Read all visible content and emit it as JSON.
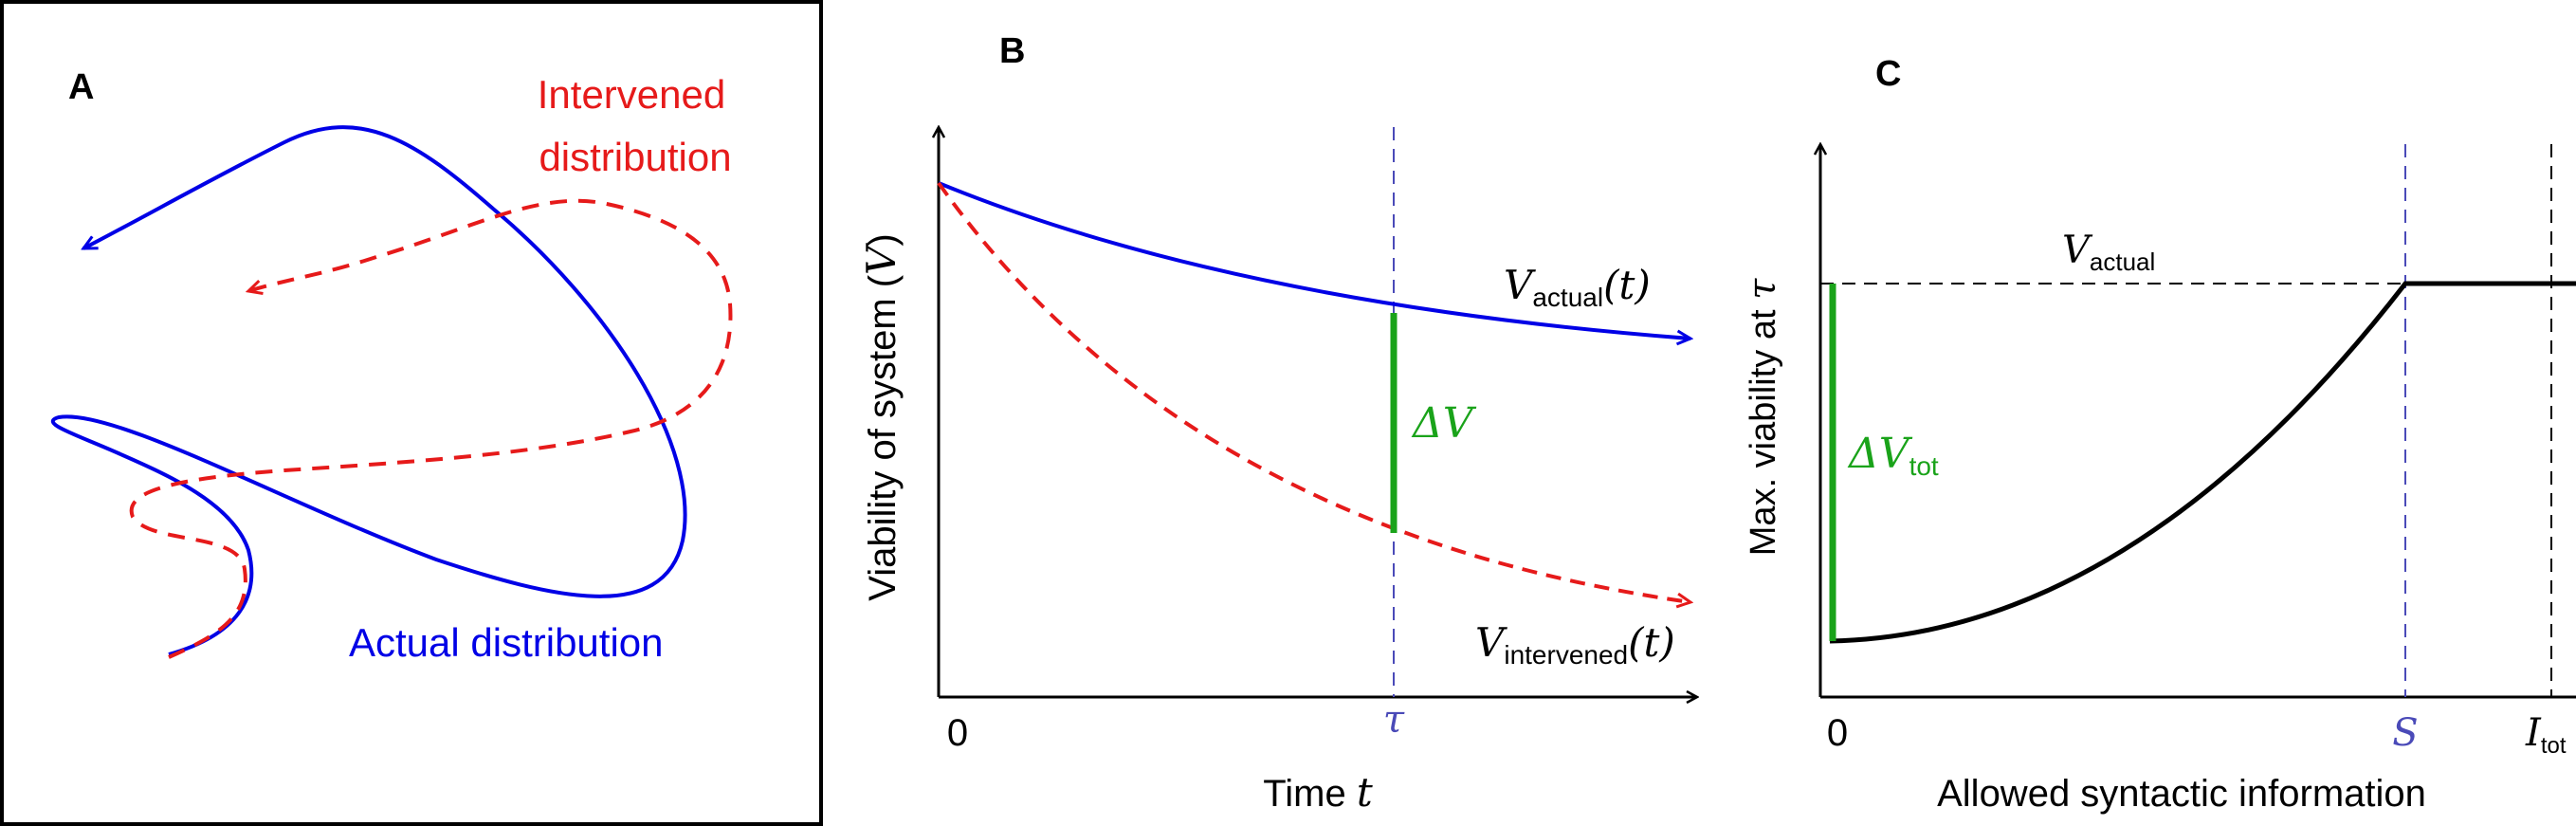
{
  "colors": {
    "actual": "#0000e6",
    "intervened": "#e61a1a",
    "green": "#1aa31a",
    "guide": "#4a4ab8",
    "black": "#000000"
  },
  "panel_a": {
    "letter": "A",
    "intervened_label_line1": "Intervened",
    "intervened_label_line2": "distribution",
    "actual_label": "Actual distribution"
  },
  "panel_b": {
    "letter": "B",
    "ylabel_text": "Viability of system (",
    "ylabel_var": "V",
    "ylabel_close": ")",
    "xlabel_text": "Time ",
    "xlabel_var": "t",
    "zero_tick": "0",
    "tau_tick": "τ",
    "v_actual_var": "V",
    "v_actual_sub": "actual",
    "v_actual_arg": "(t)",
    "v_intervened_var": "V",
    "v_intervened_sub": "intervened",
    "v_intervened_arg": "(t)",
    "delta_v": "ΔV"
  },
  "panel_c": {
    "letter": "C",
    "ylabel_text": "Max. viability at ",
    "ylabel_var": "τ",
    "xlabel": "Allowed syntactic information",
    "zero_tick": "0",
    "s_tick": "S",
    "itot_var": "I",
    "itot_sub": "tot",
    "v_actual_var": "V",
    "v_actual_sub": "actual",
    "delta_v_tot_var": "ΔV",
    "delta_v_tot_sub": "tot"
  }
}
